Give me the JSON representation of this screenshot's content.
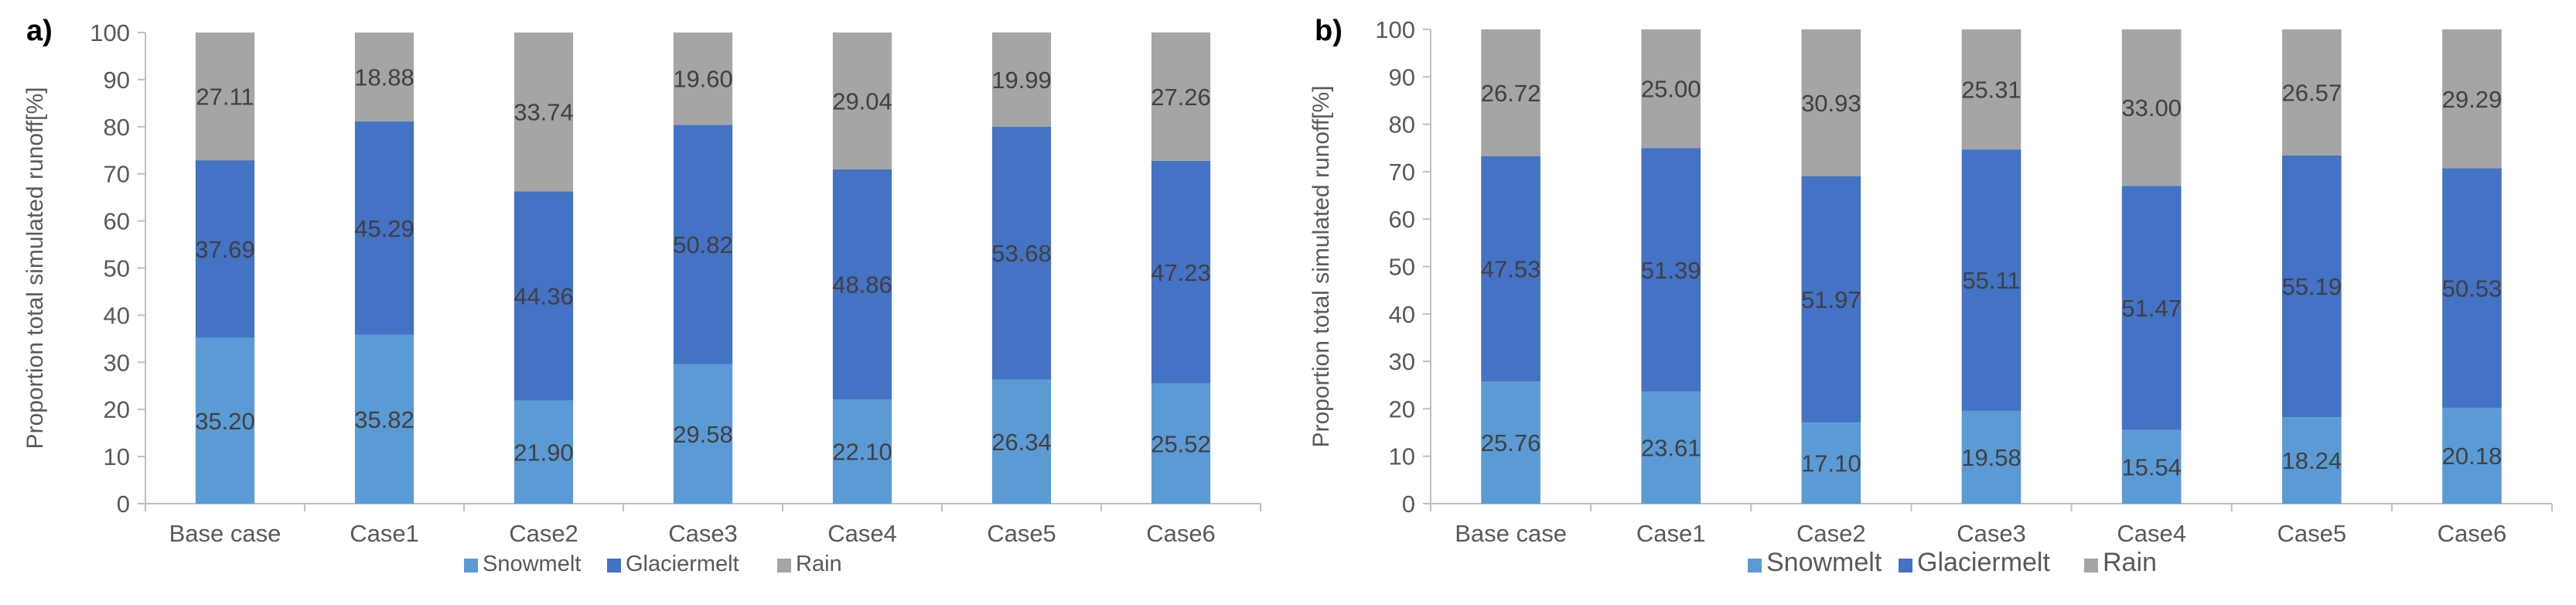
{
  "colors": {
    "snowmelt": "#5b9bd5",
    "glaciermelt": "#4472c4",
    "rain": "#a5a5a5",
    "axis": "#bfbfbf",
    "text": "#595959",
    "label_text": "#404040"
  },
  "chart_data": [
    {
      "type": "bar",
      "stacked": true,
      "panel_label": "a)",
      "title": "",
      "xlabel": "",
      "ylabel": "Proportion total simulated runoff[%]",
      "ylim": [
        0,
        100
      ],
      "yticks": [
        "0",
        "10",
        "20",
        "30",
        "40",
        "50",
        "60",
        "70",
        "80",
        "90",
        "100"
      ],
      "grid": false,
      "legend_position": "bottom",
      "categories": [
        "Base case",
        "Case1",
        "Case2",
        "Case3",
        "Case4",
        "Case5",
        "Case6"
      ],
      "series": [
        {
          "name": "Snowmelt",
          "color_key": "snowmelt",
          "values": [
            35.2,
            35.82,
            21.9,
            29.58,
            22.1,
            26.34,
            25.52
          ],
          "labels": [
            "35.20",
            "35.82",
            "21.90",
            "29.58",
            "22.10",
            "26.34",
            "25.52"
          ]
        },
        {
          "name": "Glaciermelt",
          "color_key": "glaciermelt",
          "values": [
            37.69,
            45.29,
            44.36,
            50.82,
            48.86,
            53.68,
            47.23
          ],
          "labels": [
            "37.69",
            "45.29",
            "44.36",
            "50.82",
            "48.86",
            "53.68",
            "47.23"
          ]
        },
        {
          "name": "Rain",
          "color_key": "rain",
          "values": [
            27.11,
            18.88,
            33.74,
            19.6,
            29.04,
            19.99,
            27.26
          ],
          "labels": [
            "27.11",
            "18.88",
            "33.74",
            "19.60",
            "29.04",
            "19.99",
            "27.26"
          ]
        }
      ]
    },
    {
      "type": "bar",
      "stacked": true,
      "panel_label": "b)",
      "title": "",
      "xlabel": "",
      "ylabel": "Proportion total simulated runoff[%]",
      "ylim": [
        0,
        100
      ],
      "yticks": [
        "0",
        "10",
        "20",
        "30",
        "40",
        "50",
        "60",
        "70",
        "80",
        "90",
        "100"
      ],
      "grid": false,
      "legend_position": "bottom",
      "categories": [
        "Base case",
        "Case1",
        "Case2",
        "Case3",
        "Case4",
        "Case5",
        "Case6"
      ],
      "series": [
        {
          "name": "Snowmelt",
          "color_key": "snowmelt",
          "values": [
            25.76,
            23.61,
            17.1,
            19.58,
            15.54,
            18.24,
            20.18
          ],
          "labels": [
            "25.76",
            "23.61",
            "17.10",
            "19.58",
            "15.54",
            "18.24",
            "20.18"
          ]
        },
        {
          "name": "Glaciermelt",
          "color_key": "glaciermelt",
          "values": [
            47.53,
            51.39,
            51.97,
            55.11,
            51.47,
            55.19,
            50.53
          ],
          "labels": [
            "47.53",
            "51.39",
            "51.97",
            "55.11",
            "51.47",
            "55.19",
            "50.53"
          ]
        },
        {
          "name": "Rain",
          "color_key": "rain",
          "values": [
            26.72,
            25.0,
            30.93,
            25.31,
            33.0,
            26.57,
            29.29
          ],
          "labels": [
            "26.72",
            "25.00",
            "30.93",
            "25.31",
            "33.00",
            "26.57",
            "29.29"
          ]
        }
      ]
    }
  ]
}
